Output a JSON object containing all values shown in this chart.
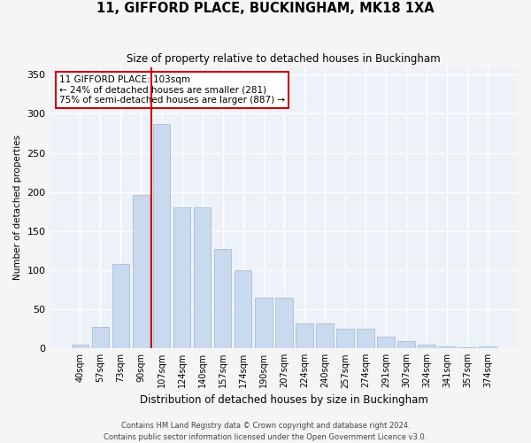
{
  "title1": "11, GIFFORD PLACE, BUCKINGHAM, MK18 1XA",
  "title2": "Size of property relative to detached houses in Buckingham",
  "xlabel": "Distribution of detached houses by size in Buckingham",
  "ylabel": "Number of detached properties",
  "bar_color": "#c9d9ee",
  "bar_edge_color": "#aabdd8",
  "background_color": "#edf2f9",
  "grid_color": "#ffffff",
  "vline_color": "#cc0000",
  "annotation_text": "11 GIFFORD PLACE: 103sqm\n← 24% of detached houses are smaller (281)\n75% of semi-detached houses are larger (887) →",
  "annotation_box_color": "#ffffff",
  "annotation_box_edge": "#cc0000",
  "categories": [
    "40sqm",
    "57sqm",
    "73sqm",
    "90sqm",
    "107sqm",
    "124sqm",
    "140sqm",
    "157sqm",
    "174sqm",
    "190sqm",
    "207sqm",
    "224sqm",
    "240sqm",
    "257sqm",
    "274sqm",
    "291sqm",
    "307sqm",
    "324sqm",
    "341sqm",
    "357sqm",
    "374sqm"
  ],
  "values": [
    5,
    27,
    108,
    196,
    287,
    180,
    180,
    127,
    100,
    65,
    65,
    32,
    32,
    25,
    25,
    15,
    9,
    5,
    2,
    1,
    2
  ],
  "ylim": [
    0,
    360
  ],
  "yticks": [
    0,
    50,
    100,
    150,
    200,
    250,
    300,
    350
  ],
  "vline_bar_index": 4,
  "footer1": "Contains HM Land Registry data © Crown copyright and database right 2024.",
  "footer2": "Contains public sector information licensed under the Open Government Licence v3.0."
}
